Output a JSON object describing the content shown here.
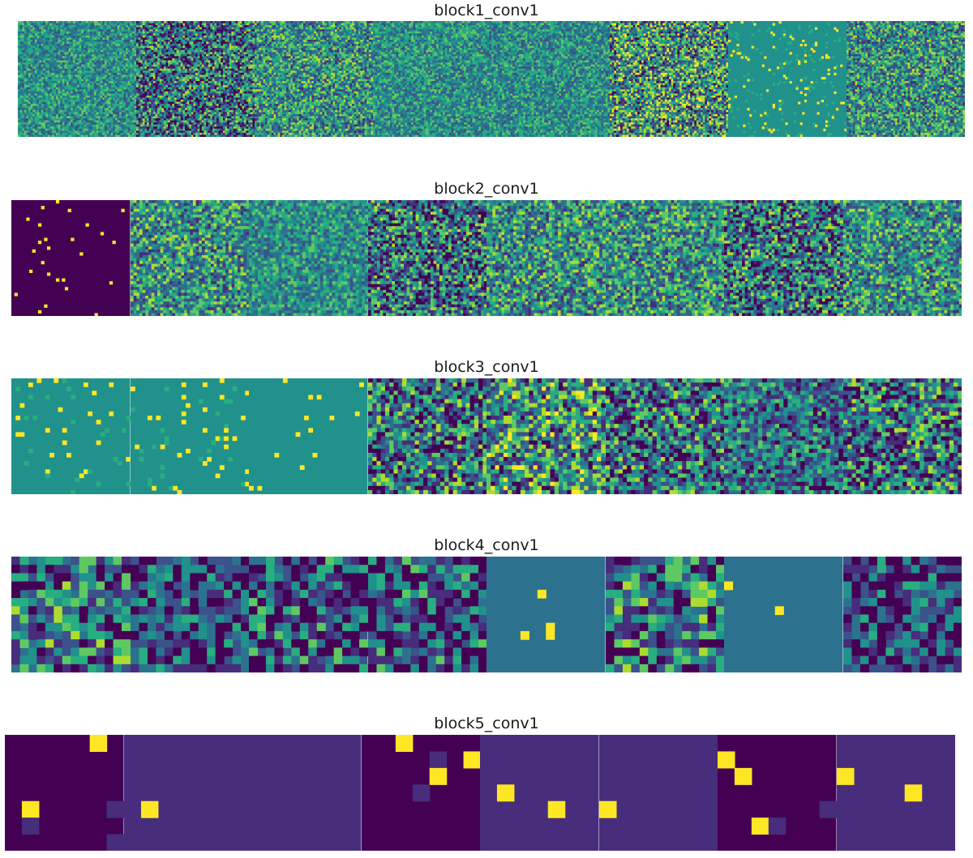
{
  "figure": {
    "description_colormap": "viridis",
    "colors": {
      "dark": "#440154",
      "purple": "#472d7b",
      "blue": "#3b528b",
      "teal": "#2c728e",
      "green_teal": "#21918c",
      "green": "#28ae80",
      "lime": "#5ec962",
      "yellow_green": "#addc30",
      "yellow": "#fde725"
    },
    "blocks": [
      {
        "title": "block1_conv1",
        "maps": 8,
        "grid": 56
      },
      {
        "title": "block2_conv1",
        "maps": 8,
        "grid": 40
      },
      {
        "title": "block3_conv1",
        "maps": 8,
        "grid": 28
      },
      {
        "title": "block4_conv1",
        "maps": 8,
        "grid": 14
      },
      {
        "title": "block5_conv1",
        "maps": 8,
        "grid": 7
      }
    ]
  }
}
